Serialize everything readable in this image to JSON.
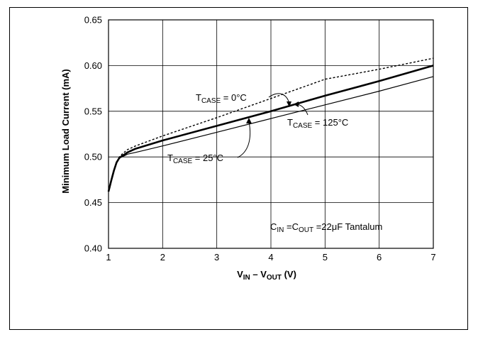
{
  "chart_data": {
    "type": "line",
    "xlabel": {
      "main": "V",
      "sub1": "IN",
      "sep": " – V",
      "sub2": "OUT",
      "unit": " (V)"
    },
    "ylabel": "Minimum Load Current (mA)",
    "xlim": [
      1,
      7
    ],
    "ylim": [
      0.4,
      0.65
    ],
    "x_ticks": [
      "1",
      "2",
      "3",
      "4",
      "5",
      "6",
      "7"
    ],
    "y_ticks": [
      "0.40",
      "0.45",
      "0.50",
      "0.55",
      "0.60",
      "0.65"
    ],
    "grid": true,
    "series": [
      {
        "label_main": "T",
        "label_sub": "CASE",
        "label_rest": " = 0°C",
        "style": "dashed",
        "x": [
          1.0,
          1.05,
          1.1,
          1.15,
          1.2,
          1.25,
          1.35,
          1.5,
          2.0,
          3.0,
          4.0,
          5.0,
          6.0,
          7.0
        ],
        "y": [
          0.462,
          0.474,
          0.485,
          0.494,
          0.5,
          0.503,
          0.508,
          0.512,
          0.523,
          0.543,
          0.564,
          0.585,
          0.596,
          0.608
        ]
      },
      {
        "label_main": "T",
        "label_sub": "CASE",
        "label_rest": " = 25°C",
        "style": "bold",
        "x": [
          1.0,
          1.05,
          1.1,
          1.15,
          1.2,
          1.25,
          1.35,
          1.5,
          2.0,
          3.0,
          4.0,
          5.0,
          6.0,
          7.0
        ],
        "y": [
          0.462,
          0.474,
          0.485,
          0.494,
          0.499,
          0.501,
          0.505,
          0.509,
          0.518,
          0.534,
          0.55,
          0.567,
          0.583,
          0.6
        ]
      },
      {
        "label_main": "T",
        "label_sub": "CASE",
        "label_rest": " = 125°C",
        "style": "thin",
        "x": [
          1.0,
          1.05,
          1.1,
          1.15,
          1.2,
          1.25,
          1.35,
          1.5,
          2.0,
          3.0,
          4.0,
          5.0,
          6.0,
          7.0
        ],
        "y": [
          0.462,
          0.474,
          0.485,
          0.494,
          0.499,
          0.5,
          0.503,
          0.505,
          0.512,
          0.527,
          0.542,
          0.557,
          0.572,
          0.588
        ]
      }
    ],
    "annotation": {
      "c_main": "C",
      "c_sub1": "IN",
      "c_mid": " =C",
      "c_sub2": "OUT",
      "c_rest": " =22",
      "mu": "μ",
      "c_end": "F Tantalum"
    }
  }
}
